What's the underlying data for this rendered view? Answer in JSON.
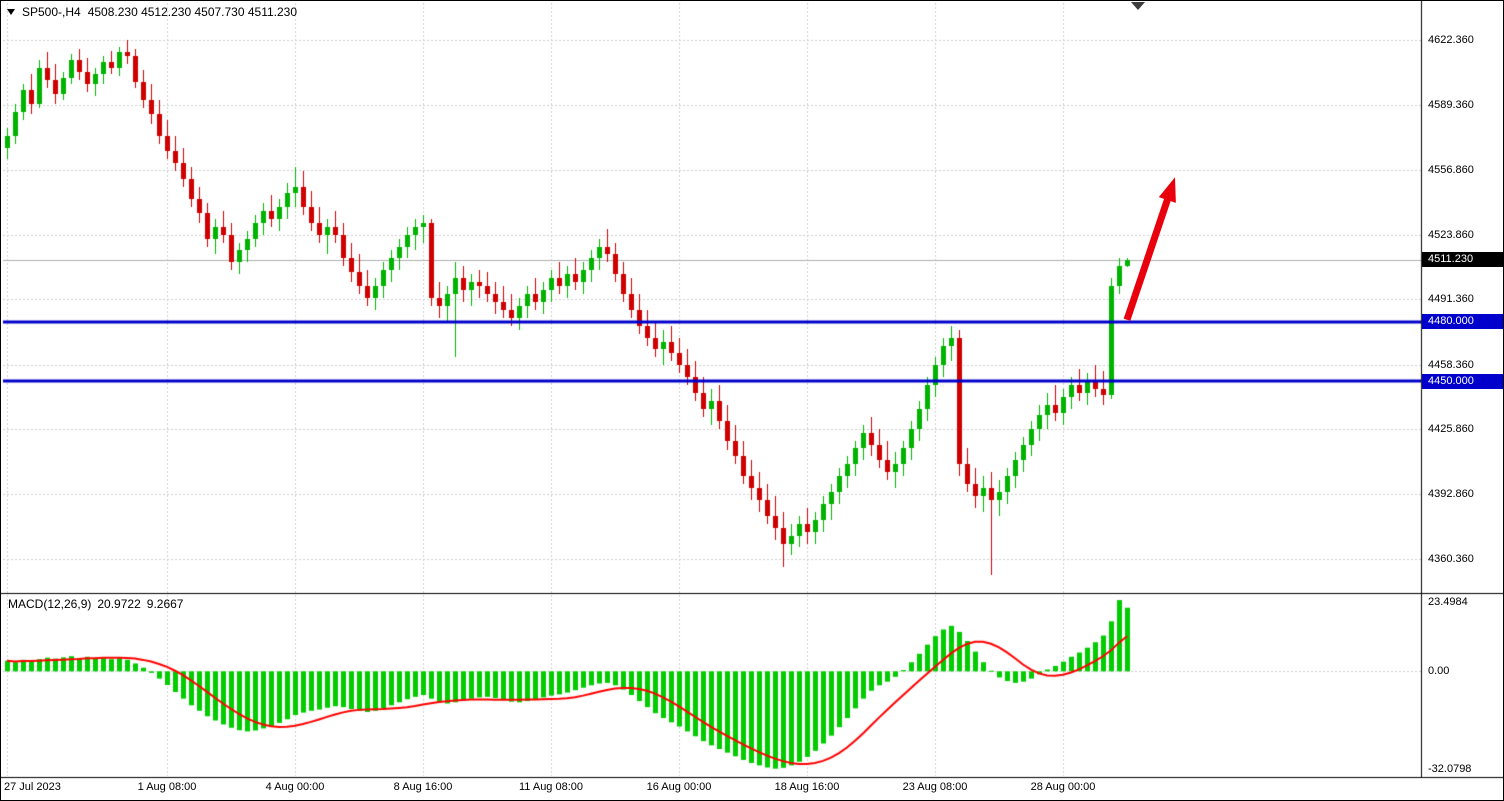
{
  "header": {
    "symbol": "SP500-,H4",
    "ohlc": "4508.230 4512.230 4507.730 4511.230"
  },
  "macd_header": {
    "label": "MACD(12,26,9)",
    "value_main": "20.9722",
    "value_signal": "9.2667"
  },
  "colors": {
    "bull": "#00b300",
    "bear": "#d10000",
    "macd_hist": "#00cc00",
    "macd_signal": "#ff0000",
    "level": "#0000cc",
    "grid": "#cfcfcf",
    "border": "#000000",
    "arrow": "#e8000d",
    "current_price_line": "#b0b0b0",
    "badge_current_bg": "#000000"
  },
  "axes": {
    "price_axis": [
      {
        "label": "4622.360",
        "value": 4622.36
      },
      {
        "label": "4589.360",
        "value": 4589.36
      },
      {
        "label": "4556.860",
        "value": 4556.86
      },
      {
        "label": "4523.860",
        "value": 4523.86
      },
      {
        "label": "4491.360",
        "value": 4491.36
      },
      {
        "label": "4458.360",
        "value": 4458.36
      },
      {
        "label": "4425.860",
        "value": 4425.86
      },
      {
        "label": "4392.860",
        "value": 4392.86
      },
      {
        "label": "4360.360",
        "value": 4360.36
      }
    ],
    "macd_axis": [
      {
        "label": "23.4984",
        "value": 23.4984
      },
      {
        "label": "0.00",
        "value": 0
      },
      {
        "label": "-32.0798",
        "value": -32.0798
      }
    ]
  },
  "badges": [
    {
      "text": "4511.230",
      "price": 4511.23,
      "type": "current"
    },
    {
      "text": "4480.000",
      "price": 4480.0,
      "type": "level"
    },
    {
      "text": "4450.000",
      "price": 4450.0,
      "type": "level"
    }
  ],
  "chart_data": [
    {
      "type": "candlestick",
      "title": "SP500- H4",
      "timeframe": "H4",
      "y_range": [
        4343,
        4641
      ],
      "last_open": 4508.23,
      "last_high": 4512.23,
      "last_low": 4507.73,
      "last_close": 4511.23,
      "support_resistance_levels": [
        4480.0,
        4450.0
      ],
      "x_tick_labels": [
        {
          "index": 0,
          "label": "27 Jul 2023"
        },
        {
          "index": 20,
          "label": "1 Aug 08:00"
        },
        {
          "index": 36,
          "label": "4 Aug 00:00"
        },
        {
          "index": 52,
          "label": "8 Aug 16:00"
        },
        {
          "index": 68,
          "label": "11 Aug 08:00"
        },
        {
          "index": 84,
          "label": "16 Aug 00:00"
        },
        {
          "index": 100,
          "label": "18 Aug 16:00"
        },
        {
          "index": 116,
          "label": "23 Aug 08:00"
        },
        {
          "index": 132,
          "label": "28 Aug 00:00"
        }
      ],
      "annotations": [
        {
          "type": "arrow-up",
          "from": {
            "index": 140,
            "price": 4481
          },
          "to": {
            "index": 146,
            "price": 4553
          }
        }
      ],
      "candles": [
        [
          4568,
          4578,
          4562,
          4574
        ],
        [
          4574,
          4590,
          4570,
          4586
        ],
        [
          4586,
          4600,
          4582,
          4597
        ],
        [
          4597,
          4605,
          4585,
          4590
        ],
        [
          4590,
          4612,
          4588,
          4608
        ],
        [
          4608,
          4616,
          4598,
          4602
        ],
        [
          4602,
          4610,
          4590,
          4595
        ],
        [
          4595,
          4606,
          4592,
          4603
        ],
        [
          4603,
          4615,
          4600,
          4612
        ],
        [
          4612,
          4618,
          4602,
          4606
        ],
        [
          4606,
          4613,
          4596,
          4600
        ],
        [
          4600,
          4608,
          4594,
          4605
        ],
        [
          4605,
          4614,
          4600,
          4611
        ],
        [
          4611,
          4617,
          4605,
          4608
        ],
        [
          4608,
          4619,
          4604,
          4616
        ],
        [
          4616,
          4622.36,
          4610,
          4614
        ],
        [
          4614,
          4618,
          4598,
          4601
        ],
        [
          4601,
          4607,
          4588,
          4592
        ],
        [
          4592,
          4600,
          4580,
          4585
        ],
        [
          4585,
          4592,
          4570,
          4574
        ],
        [
          4574,
          4582,
          4562,
          4566
        ],
        [
          4566,
          4574,
          4556,
          4560
        ],
        [
          4560,
          4568,
          4548,
          4552
        ],
        [
          4552,
          4558,
          4538,
          4542
        ],
        [
          4542,
          4548,
          4530,
          4535
        ],
        [
          4535,
          4540,
          4518,
          4522
        ],
        [
          4522,
          4532,
          4514,
          4528
        ],
        [
          4528,
          4536,
          4520,
          4524
        ],
        [
          4524,
          4530,
          4506,
          4510
        ],
        [
          4510,
          4520,
          4504,
          4516
        ],
        [
          4516,
          4526,
          4510,
          4522
        ],
        [
          4522,
          4534,
          4518,
          4530
        ],
        [
          4530,
          4540,
          4524,
          4536
        ],
        [
          4536,
          4544,
          4528,
          4532
        ],
        [
          4532,
          4542,
          4526,
          4538
        ],
        [
          4538,
          4550,
          4532,
          4545
        ],
        [
          4545,
          4558,
          4538,
          4548
        ],
        [
          4548,
          4556,
          4534,
          4538
        ],
        [
          4538,
          4546,
          4526,
          4530
        ],
        [
          4530,
          4538,
          4520,
          4524
        ],
        [
          4524,
          4532,
          4514,
          4528
        ],
        [
          4528,
          4536,
          4520,
          4524
        ],
        [
          4524,
          4530,
          4508,
          4512
        ],
        [
          4512,
          4520,
          4500,
          4505
        ],
        [
          4505,
          4514,
          4494,
          4498
        ],
        [
          4498,
          4506,
          4488,
          4492
        ],
        [
          4492,
          4502,
          4486,
          4498
        ],
        [
          4498,
          4510,
          4492,
          4506
        ],
        [
          4506,
          4516,
          4500,
          4512
        ],
        [
          4512,
          4522,
          4506,
          4518
        ],
        [
          4518,
          4528,
          4512,
          4524
        ],
        [
          4524,
          4532,
          4516,
          4528
        ],
        [
          4528,
          4534,
          4520,
          4530
        ],
        [
          4530,
          4532,
          4488,
          4492
        ],
        [
          4492,
          4500,
          4482,
          4488
        ],
        [
          4488,
          4498,
          4480,
          4494
        ],
        [
          4494,
          4510,
          4462,
          4502
        ],
        [
          4502,
          4508,
          4490,
          4496
        ],
        [
          4496,
          4504,
          4488,
          4500
        ],
        [
          4500,
          4506,
          4492,
          4498
        ],
        [
          4498,
          4505,
          4490,
          4494
        ],
        [
          4494,
          4500,
          4484,
          4490
        ],
        [
          4490,
          4498,
          4482,
          4486
        ],
        [
          4486,
          4494,
          4478,
          4482
        ],
        [
          4482,
          4492,
          4476,
          4488
        ],
        [
          4488,
          4498,
          4482,
          4494
        ],
        [
          4494,
          4502,
          4486,
          4490
        ],
        [
          4490,
          4500,
          4484,
          4496
        ],
        [
          4496,
          4506,
          4490,
          4502
        ],
        [
          4502,
          4510,
          4494,
          4498
        ],
        [
          4498,
          4508,
          4492,
          4504
        ],
        [
          4504,
          4512,
          4496,
          4500
        ],
        [
          4500,
          4510,
          4494,
          4506
        ],
        [
          4506,
          4516,
          4500,
          4512
        ],
        [
          4512,
          4522,
          4506,
          4518
        ],
        [
          4518,
          4527,
          4510,
          4514
        ],
        [
          4514,
          4520,
          4500,
          4504
        ],
        [
          4504,
          4510,
          4490,
          4494
        ],
        [
          4494,
          4502,
          4482,
          4486
        ],
        [
          4486,
          4494,
          4474,
          4478
        ],
        [
          4478,
          4486,
          4468,
          4472
        ],
        [
          4472,
          4480,
          4462,
          4466
        ],
        [
          4466,
          4476,
          4458,
          4470
        ],
        [
          4470,
          4478,
          4460,
          4464
        ],
        [
          4464,
          4472,
          4454,
          4458
        ],
        [
          4458,
          4466,
          4448,
          4452
        ],
        [
          4452,
          4460,
          4440,
          4444
        ],
        [
          4444,
          4452,
          4432,
          4436
        ],
        [
          4436,
          4446,
          4428,
          4440
        ],
        [
          4440,
          4448,
          4426,
          4430
        ],
        [
          4430,
          4438,
          4415,
          4420
        ],
        [
          4420,
          4428,
          4408,
          4412
        ],
        [
          4412,
          4420,
          4398,
          4402
        ],
        [
          4402,
          4410,
          4390,
          4396
        ],
        [
          4396,
          4404,
          4384,
          4390
        ],
        [
          4390,
          4398,
          4378,
          4382
        ],
        [
          4382,
          4392,
          4370,
          4376
        ],
        [
          4376,
          4384,
          4356,
          4368
        ],
        [
          4368,
          4378,
          4362,
          4372
        ],
        [
          4372,
          4382,
          4366,
          4378
        ],
        [
          4378,
          4386,
          4368,
          4374
        ],
        [
          4374,
          4384,
          4368,
          4380
        ],
        [
          4380,
          4392,
          4374,
          4388
        ],
        [
          4388,
          4398,
          4380,
          4394
        ],
        [
          4394,
          4406,
          4388,
          4402
        ],
        [
          4402,
          4412,
          4396,
          4408
        ],
        [
          4408,
          4420,
          4402,
          4416
        ],
        [
          4416,
          4428,
          4410,
          4424
        ],
        [
          4424,
          4432,
          4412,
          4418
        ],
        [
          4418,
          4426,
          4406,
          4410
        ],
        [
          4410,
          4420,
          4400,
          4404
        ],
        [
          4404,
          4414,
          4396,
          4408
        ],
        [
          4408,
          4420,
          4402,
          4416
        ],
        [
          4416,
          4430,
          4410,
          4426
        ],
        [
          4426,
          4440,
          4420,
          4436
        ],
        [
          4436,
          4452,
          4430,
          4448
        ],
        [
          4448,
          4462,
          4442,
          4458
        ],
        [
          4458,
          4472,
          4452,
          4468
        ],
        [
          4468,
          4478,
          4460,
          4472
        ],
        [
          4472,
          4476,
          4402,
          4408
        ],
        [
          4408,
          4416,
          4394,
          4398
        ],
        [
          4398,
          4406,
          4386,
          4392
        ],
        [
          4392,
          4402,
          4384,
          4396
        ],
        [
          4396,
          4404,
          4352,
          4390
        ],
        [
          4390,
          4400,
          4382,
          4394
        ],
        [
          4394,
          4406,
          4388,
          4402
        ],
        [
          4402,
          4414,
          4396,
          4410
        ],
        [
          4410,
          4422,
          4404,
          4418
        ],
        [
          4418,
          4430,
          4412,
          4426
        ],
        [
          4426,
          4438,
          4420,
          4433
        ],
        [
          4433,
          4444,
          4426,
          4438
        ],
        [
          4438,
          4448,
          4430,
          4434
        ],
        [
          4434,
          4446,
          4428,
          4442
        ],
        [
          4442,
          4452,
          4436,
          4448
        ],
        [
          4448,
          4456,
          4440,
          4444
        ],
        [
          4444,
          4454,
          4438,
          4450
        ],
        [
          4450,
          4458,
          4442,
          4446
        ],
        [
          4446,
          4455,
          4438,
          4443
        ],
        [
          4443,
          4502,
          4441,
          4498
        ],
        [
          4498,
          4512,
          4494,
          4508
        ],
        [
          4508.23,
          4512.23,
          4507.73,
          4511.23
        ]
      ]
    },
    {
      "type": "bar",
      "title": "MACD(12,26,9)",
      "y_range": [
        -34.5,
        25.5
      ],
      "y_tick_labels": [
        "23.4984",
        "0.00",
        "-32.0798"
      ],
      "signal_period": 9,
      "last_macd": 20.9722,
      "last_signal": 9.2667,
      "values": [
        3.5,
        3.0,
        3.8,
        3.2,
        4.0,
        4.5,
        4.2,
        4.6,
        5.0,
        4.4,
        4.8,
        4.2,
        4.6,
        4.0,
        4.4,
        3.8,
        2.6,
        1.2,
        -0.5,
        -2.4,
        -4.5,
        -6.8,
        -9.0,
        -11.2,
        -13.0,
        -14.8,
        -16.2,
        -17.5,
        -18.6,
        -19.4,
        -19.8,
        -19.5,
        -18.8,
        -18.0,
        -17.0,
        -15.8,
        -14.4,
        -13.6,
        -13.0,
        -12.6,
        -12.0,
        -11.5,
        -11.8,
        -12.4,
        -13.0,
        -13.4,
        -13.0,
        -12.2,
        -11.2,
        -10.2,
        -9.2,
        -8.4,
        -7.8,
        -9.0,
        -10.0,
        -10.6,
        -10.2,
        -9.6,
        -9.0,
        -8.6,
        -8.4,
        -8.8,
        -9.4,
        -10.0,
        -10.2,
        -9.8,
        -9.2,
        -8.6,
        -8.0,
        -7.6,
        -7.0,
        -6.2,
        -5.4,
        -4.6,
        -4.0,
        -3.8,
        -4.6,
        -6.0,
        -7.8,
        -9.8,
        -11.8,
        -13.8,
        -15.4,
        -16.8,
        -18.2,
        -19.8,
        -21.4,
        -23.0,
        -24.4,
        -25.6,
        -26.8,
        -28.0,
        -29.2,
        -30.2,
        -31.0,
        -31.7,
        -32.0798,
        -31.8,
        -31.0,
        -29.8,
        -28.2,
        -26.2,
        -23.8,
        -21.2,
        -18.4,
        -15.4,
        -12.2,
        -9.0,
        -6.4,
        -4.6,
        -3.4,
        -1.8,
        0.4,
        3.0,
        5.8,
        8.8,
        11.6,
        13.8,
        15.0,
        13.0,
        10.0,
        6.5,
        3.0,
        0.2,
        -2.0,
        -3.2,
        -3.8,
        -3.4,
        -2.4,
        -1.0,
        0.6,
        1.8,
        3.2,
        4.8,
        6.2,
        7.8,
        9.6,
        11.8,
        16.5,
        23.4984,
        20.9722
      ]
    }
  ]
}
